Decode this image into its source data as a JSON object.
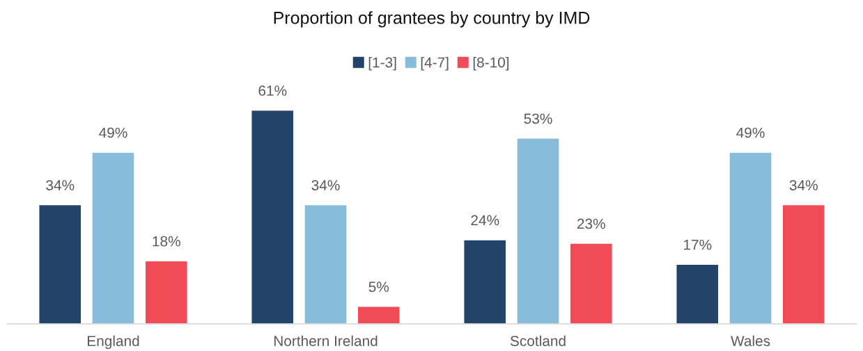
{
  "chart_data": {
    "type": "bar",
    "title": "Proportion of grantees by country by IMD",
    "categories": [
      "England",
      "Northern Ireland",
      "Scotland",
      "Wales"
    ],
    "series": [
      {
        "name": "[1-3]",
        "color": "#23446a",
        "values": [
          34,
          61,
          24,
          17
        ],
        "value_labels": [
          "34%",
          "61%",
          "24%",
          "17%"
        ]
      },
      {
        "name": "[4-7]",
        "color": "#87bddb",
        "values": [
          49,
          34,
          53,
          49
        ],
        "value_labels": [
          "49%",
          "34%",
          "53%",
          "49%"
        ]
      },
      {
        "name": "[8-10]",
        "color": "#f04b57",
        "values": [
          18,
          5,
          23,
          34
        ],
        "value_labels": [
          "18%",
          "5%",
          "23%",
          "34%"
        ]
      }
    ],
    "legend": "top",
    "grid": false
  }
}
